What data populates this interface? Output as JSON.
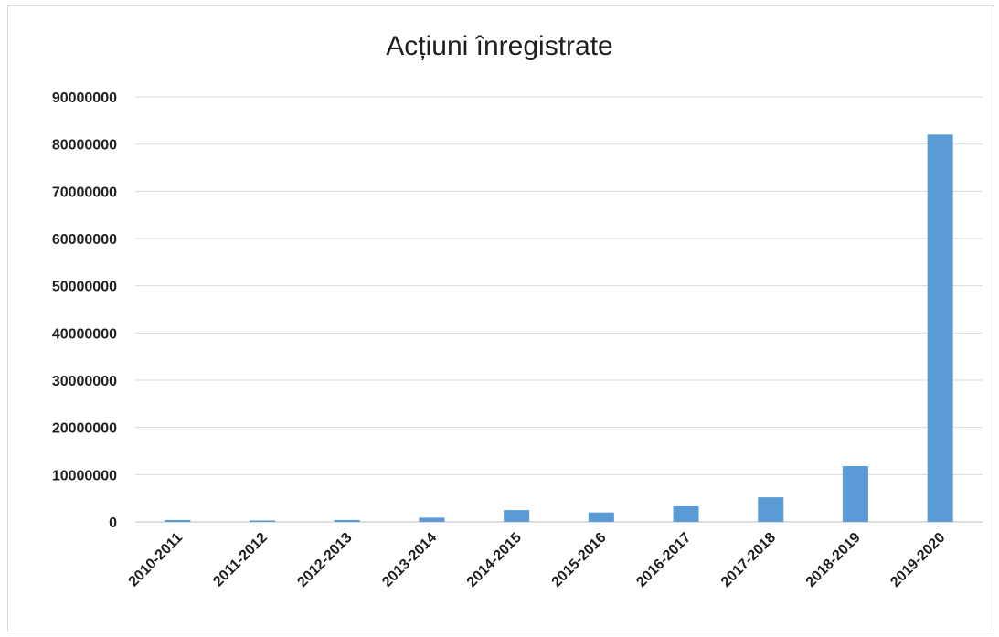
{
  "chart_data": {
    "type": "bar",
    "title": "Acțiuni înregistrate",
    "xlabel": "",
    "ylabel": "",
    "categories": [
      "2010-2011",
      "2011-2012",
      "2012-2013",
      "2013-2014",
      "2014-2015",
      "2015-2016",
      "2016-2017",
      "2017-2018",
      "2018-2019",
      "2019-2020"
    ],
    "values": [
      400000,
      300000,
      400000,
      900000,
      2500000,
      2000000,
      3300000,
      5200000,
      11800000,
      82000000
    ],
    "ylim": [
      0,
      90000000
    ],
    "yticks": [
      "0",
      "10000000",
      "20000000",
      "30000000",
      "40000000",
      "50000000",
      "60000000",
      "70000000",
      "80000000",
      "90000000"
    ],
    "grid": true,
    "legend": "none",
    "colors": {
      "bar": "#5b9bd5",
      "grid": "#d9d9d9",
      "axis": "#bfbfbf"
    }
  }
}
